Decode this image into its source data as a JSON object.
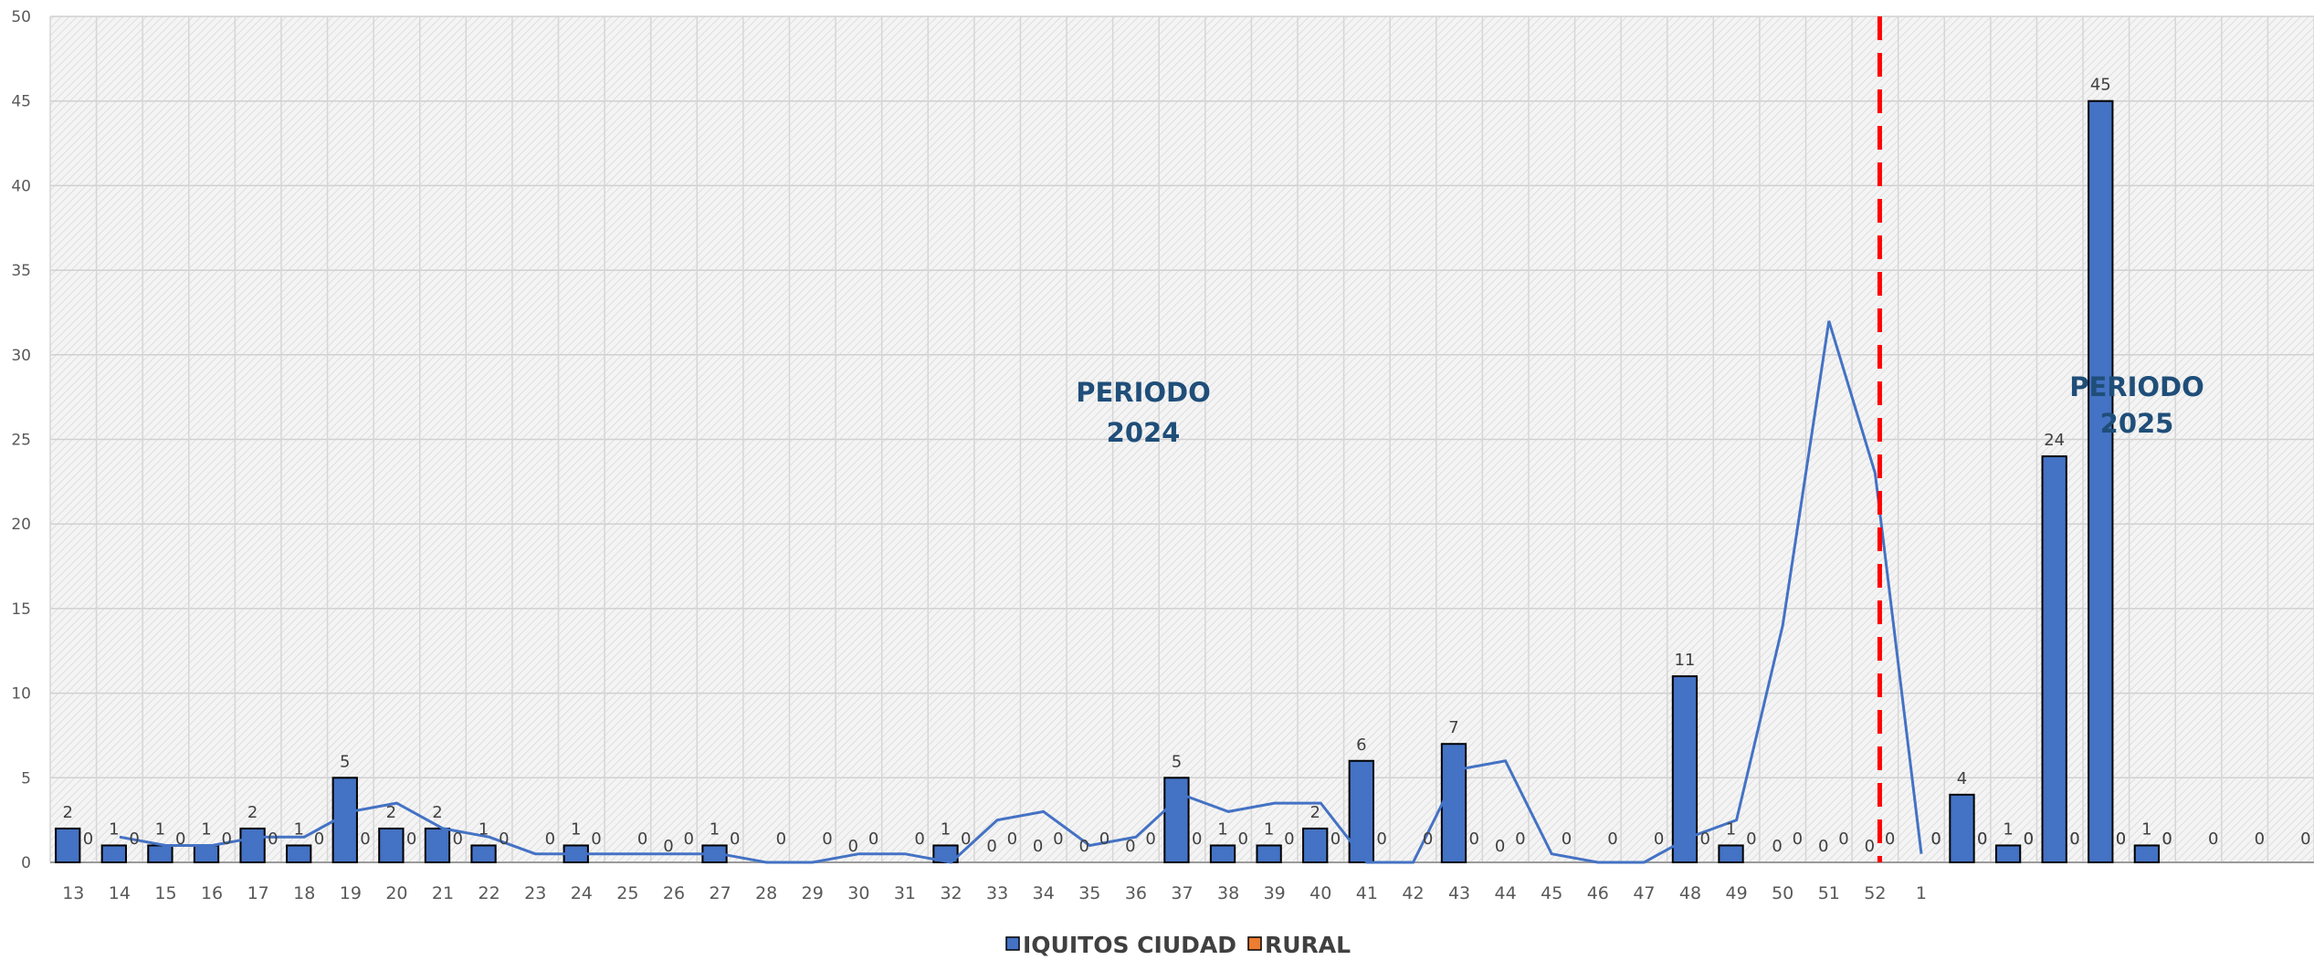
{
  "chart_data": {
    "type": "bar",
    "categories": [
      "13",
      "14",
      "15",
      "16",
      "17",
      "18",
      "19",
      "20",
      "21",
      "22",
      "23",
      "24",
      "25",
      "26",
      "27",
      "28",
      "29",
      "30",
      "31",
      "32",
      "33",
      "34",
      "35",
      "36",
      "37",
      "38",
      "39",
      "40",
      "41",
      "42",
      "43",
      "44",
      "45",
      "46",
      "47",
      "48",
      "49",
      "50",
      "51",
      "52",
      "1",
      "",
      "",
      "",
      "",
      "",
      "",
      "",
      ""
    ],
    "series": [
      {
        "name": "IQUITOS CIUDAD",
        "color": "#4472c4",
        "values": [
          2,
          1,
          1,
          1,
          2,
          1,
          5,
          2,
          2,
          1,
          0,
          1,
          0,
          0,
          1,
          0,
          0,
          0,
          0,
          1,
          0,
          0,
          0,
          0,
          5,
          1,
          1,
          2,
          6,
          0,
          7,
          0,
          0,
          0,
          0,
          11,
          1,
          0,
          0,
          0,
          0,
          4,
          1,
          24,
          45,
          1,
          null,
          null,
          null
        ]
      },
      {
        "name": "RURAL",
        "color": "#ed7d31",
        "values": [
          0,
          0,
          0,
          0,
          0,
          0,
          0,
          0,
          0,
          0,
          0,
          0,
          0,
          0,
          0,
          0,
          0,
          0,
          0,
          0,
          0,
          0,
          0,
          0,
          0,
          0,
          0,
          0,
          0,
          0,
          0,
          0,
          0,
          0,
          0,
          0,
          0,
          0,
          0,
          0,
          0,
          0,
          0,
          0,
          0,
          0,
          0,
          0,
          0
        ]
      }
    ],
    "trendline": {
      "color": "#4472c4",
      "values": [
        null,
        1.5,
        1,
        1,
        1.5,
        1.5,
        3,
        3.5,
        2,
        1.5,
        0.5,
        0.5,
        0.5,
        0.5,
        0.5,
        0,
        0,
        0.5,
        0.5,
        0,
        2.5,
        3,
        1,
        1.5,
        4,
        3,
        3.5,
        3.5,
        0,
        0,
        5.5,
        6,
        0.5,
        0,
        0,
        1.5,
        2.5,
        14,
        32,
        23,
        0.5
      ]
    },
    "bar_label_indices": [
      0,
      1,
      2,
      3,
      4,
      5,
      6,
      7,
      8,
      9,
      11,
      13,
      17,
      20,
      21,
      22,
      23,
      24,
      26,
      30,
      31,
      35,
      36,
      37,
      38,
      39
    ],
    "bar_labels_override": {},
    "ylim": [
      0,
      50
    ],
    "yticks": [
      0,
      5,
      10,
      15,
      20,
      25,
      30,
      35,
      40,
      45,
      50
    ],
    "divider_after_category": "52",
    "divider_color": "#ff0000",
    "annotations": [
      {
        "line1": "PERIODO",
        "line2": "2024"
      },
      {
        "line1": "PERIODO",
        "line2": "2025"
      }
    ],
    "title": "",
    "xlabel": "",
    "ylabel": "",
    "grid": true,
    "legend_position": "bottom"
  }
}
